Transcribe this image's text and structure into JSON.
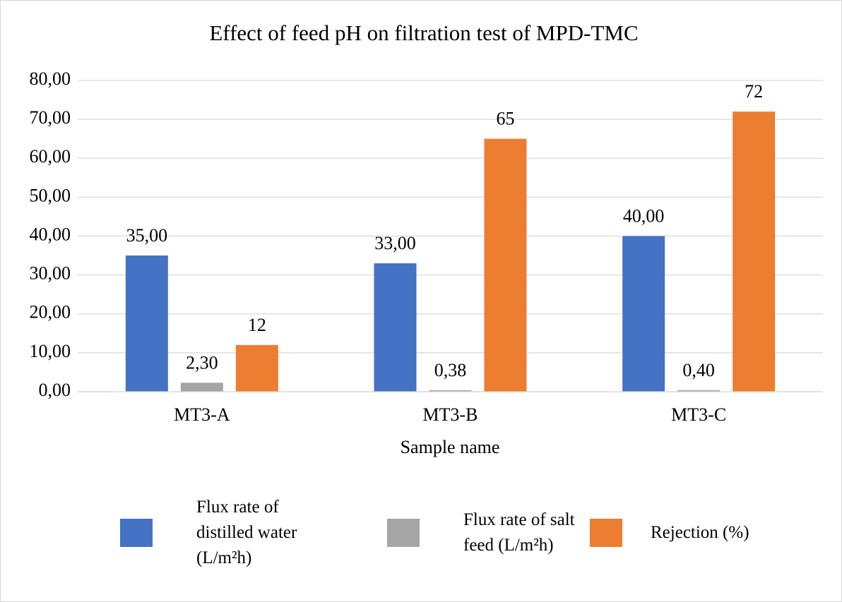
{
  "chart_data": {
    "type": "bar",
    "title": "Effect of feed pH on filtration test of MPD-TMC",
    "x_label": "Sample name",
    "categories": [
      "MT3-A",
      "MT3-B",
      "MT3-C"
    ],
    "series": [
      {
        "name": "Flux rate of distilled water (L/m²h)",
        "color": "#4472c4",
        "values": [
          35,
          33,
          40
        ],
        "value_labels": [
          "35,00",
          "33,00",
          "40,00"
        ]
      },
      {
        "name": "Flux rate of salt feed (L/m²h)",
        "color": "#a5a5a5",
        "values": [
          2.3,
          0.38,
          0.4
        ],
        "value_labels": [
          "2,30",
          "0,38",
          "0,40"
        ]
      },
      {
        "name": "Rejection (%)",
        "color": "#ed7d31",
        "values": [
          12,
          65,
          72
        ]
      }
    ],
    "ylim": [
      0,
      80
    ],
    "yticks": [
      {
        "value": 0,
        "label": "0,00"
      },
      {
        "value": 10,
        "label": "10,00"
      },
      {
        "value": 20,
        "label": "20,00"
      },
      {
        "value": 30,
        "label": "30,00"
      },
      {
        "value": 40,
        "label": "40,00"
      },
      {
        "value": 50,
        "label": "50,00"
      },
      {
        "value": 60,
        "label": "60,00"
      },
      {
        "value": 70,
        "label": "70,00"
      },
      {
        "value": 80,
        "label": "80,00"
      }
    ],
    "grid": true,
    "legend": "bottom"
  }
}
